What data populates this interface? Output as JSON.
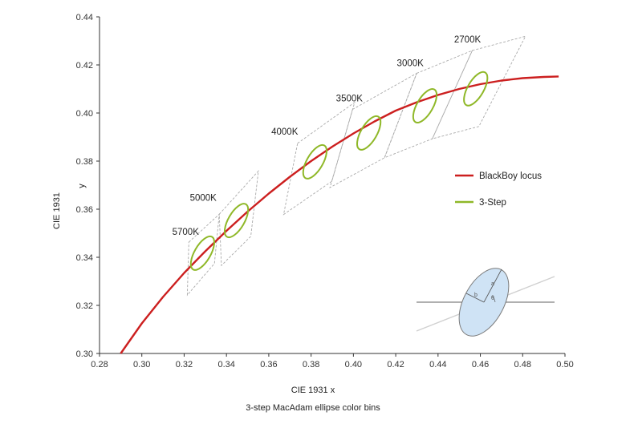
{
  "chart_data": {
    "type": "line",
    "caption": "3-step MacAdam ellipse color bins",
    "xlabel": "CIE 1931 x",
    "ylabel": "CIE 1931",
    "ylabel_sub": "y",
    "xlim": [
      0.28,
      0.5
    ],
    "ylim": [
      0.3,
      0.44
    ],
    "xticks": [
      "0.28",
      "0.30",
      "0.32",
      "0.34",
      "0.36",
      "0.38",
      "0.40",
      "0.42",
      "0.44",
      "0.46",
      "0.48",
      "0.50"
    ],
    "yticks": [
      "0.30",
      "0.32",
      "0.34",
      "0.36",
      "0.38",
      "0.40",
      "0.42",
      "0.44"
    ],
    "grid": false,
    "legend_position": "right",
    "series": [
      {
        "name": "BlackBoy locus",
        "color": "#cc1f1f",
        "x": [
          0.29,
          0.3,
          0.31,
          0.32,
          0.33,
          0.34,
          0.35,
          0.36,
          0.37,
          0.38,
          0.39,
          0.4,
          0.41,
          0.42,
          0.43,
          0.44,
          0.45,
          0.46,
          0.47,
          0.48,
          0.49,
          0.497
        ],
        "y": [
          0.3,
          0.3125,
          0.3235,
          0.3335,
          0.3425,
          0.351,
          0.359,
          0.3665,
          0.3735,
          0.38,
          0.386,
          0.3915,
          0.3965,
          0.401,
          0.4045,
          0.4075,
          0.41,
          0.412,
          0.4135,
          0.4145,
          0.415,
          0.4152
        ]
      },
      {
        "name": "3-Step",
        "color": "#8fb828",
        "ellipses": [
          {
            "cct": "5700K",
            "cx": 0.3287,
            "cy": 0.3417
          },
          {
            "cct": "5000K",
            "cx": 0.3447,
            "cy": 0.3553
          },
          {
            "cct": "4000K",
            "cx": 0.3818,
            "cy": 0.3797
          },
          {
            "cct": "3500K",
            "cx": 0.4073,
            "cy": 0.3917
          },
          {
            "cct": "3000K",
            "cx": 0.4338,
            "cy": 0.403
          },
          {
            "cct": "2700K",
            "cx": 0.4578,
            "cy": 0.4101
          }
        ]
      }
    ],
    "bins": [
      {
        "cct": "5700K",
        "corners": [
          [
            0.3222,
            0.3463
          ],
          [
            0.3366,
            0.3579
          ],
          [
            0.3343,
            0.3374
          ],
          [
            0.3215,
            0.3243
          ]
        ]
      },
      {
        "cct": "5000K",
        "corners": [
          [
            0.3366,
            0.3579
          ],
          [
            0.3551,
            0.3759
          ],
          [
            0.3515,
            0.3487
          ],
          [
            0.3376,
            0.3366
          ]
        ]
      },
      {
        "cct": "4000K",
        "corners": [
          [
            0.3736,
            0.3874
          ],
          [
            0.4006,
            0.4044
          ],
          [
            0.3898,
            0.3716
          ],
          [
            0.367,
            0.3578
          ]
        ]
      },
      {
        "cct": "3500K",
        "corners": [
          [
            0.3996,
            0.4015
          ],
          [
            0.4299,
            0.4165
          ],
          [
            0.4147,
            0.3814
          ],
          [
            0.3889,
            0.369
          ]
        ]
      },
      {
        "cct": "3000K",
        "corners": [
          [
            0.4299,
            0.4165
          ],
          [
            0.4562,
            0.426
          ],
          [
            0.4373,
            0.3893
          ],
          [
            0.4147,
            0.3814
          ]
        ]
      },
      {
        "cct": "2700K",
        "corners": [
          [
            0.4562,
            0.426
          ],
          [
            0.4813,
            0.4319
          ],
          [
            0.4593,
            0.3944
          ],
          [
            0.4373,
            0.3893
          ]
        ]
      }
    ],
    "inset_labels": [
      "a",
      "b",
      "θ"
    ]
  }
}
